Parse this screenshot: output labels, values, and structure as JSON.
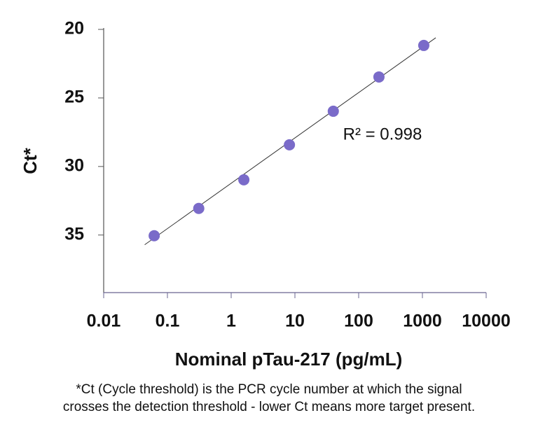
{
  "chart_data": {
    "type": "scatter",
    "x_label": "Nominal pTau-217 (pg/mL)",
    "y_label": "Ct*",
    "annotation": "R² = 0.998",
    "footnote": [
      "*Ct (Cycle threshold) is the PCR cycle number at which the signal",
      "crosses the detection threshold - lower Ct means more target present."
    ],
    "x_scale": "log",
    "y_inverted": true,
    "x": [
      0.062,
      0.31,
      1.58,
      8.2,
      40,
      208,
      1050
    ],
    "values": [
      35.05,
      33.06,
      30.97,
      28.42,
      25.97,
      23.47,
      21.17
    ],
    "color": "#7a6bc9",
    "fit_line": {
      "x": [
        0.044,
        1620
      ],
      "y": [
        35.71,
        20.61
      ],
      "color": "#333333"
    },
    "xlim": [
      0.01,
      10000
    ],
    "xticks": [
      0.01,
      0.1,
      1,
      10,
      100,
      1000,
      10000
    ],
    "ylim": [
      20,
      39.2
    ],
    "yticks": [
      20,
      25,
      30,
      35
    ]
  }
}
